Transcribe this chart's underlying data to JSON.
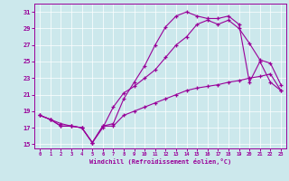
{
  "xlabel": "Windchill (Refroidissement éolien,°C)",
  "bg_color": "#cce8ec",
  "grid_color": "#ffffff",
  "line_color": "#990099",
  "xlim": [
    -0.5,
    23.5
  ],
  "ylim": [
    14.5,
    32
  ],
  "xticks": [
    0,
    1,
    2,
    3,
    4,
    5,
    6,
    7,
    8,
    9,
    10,
    11,
    12,
    13,
    14,
    15,
    16,
    17,
    18,
    19,
    20,
    21,
    22,
    23
  ],
  "yticks": [
    15,
    17,
    19,
    21,
    23,
    25,
    27,
    29,
    31
  ],
  "line1_x": [
    0,
    1,
    2,
    3,
    4,
    5,
    6,
    7,
    8,
    9,
    10,
    11,
    12,
    13,
    14,
    15,
    16,
    17,
    18,
    19,
    20,
    21,
    22,
    23
  ],
  "line1_y": [
    18.5,
    18.0,
    17.5,
    17.2,
    17.0,
    15.2,
    17.2,
    17.2,
    18.5,
    19.0,
    19.5,
    20.0,
    20.5,
    21.0,
    21.5,
    21.8,
    22.0,
    22.2,
    22.5,
    22.7,
    23.0,
    23.2,
    23.5,
    21.5
  ],
  "line2_x": [
    0,
    1,
    2,
    3,
    4,
    5,
    6,
    7,
    8,
    9,
    10,
    11,
    12,
    13,
    14,
    15,
    16,
    17,
    18,
    19,
    20,
    21,
    22,
    23
  ],
  "line2_y": [
    18.5,
    18.0,
    17.2,
    17.2,
    17.0,
    15.2,
    17.0,
    19.5,
    21.2,
    22.0,
    23.0,
    24.0,
    25.5,
    27.0,
    28.0,
    29.5,
    30.0,
    29.5,
    30.0,
    29.0,
    27.2,
    25.2,
    24.8,
    22.2
  ],
  "line3_x": [
    0,
    1,
    2,
    3,
    4,
    5,
    6,
    7,
    8,
    9,
    10,
    11,
    12,
    13,
    14,
    15,
    16,
    17,
    18,
    19,
    20,
    21,
    22,
    23
  ],
  "line3_y": [
    18.5,
    18.0,
    17.2,
    17.2,
    17.0,
    15.2,
    17.2,
    17.5,
    20.5,
    22.5,
    24.5,
    27.0,
    29.2,
    30.5,
    31.0,
    30.5,
    30.2,
    30.2,
    30.5,
    29.5,
    22.5,
    25.0,
    22.5,
    21.5
  ]
}
